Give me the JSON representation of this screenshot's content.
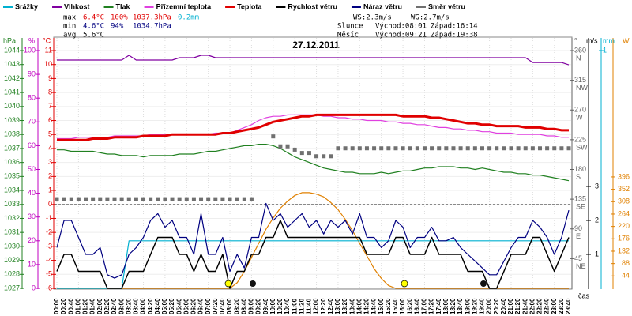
{
  "chart_data": {
    "type": "line",
    "title": "27.12.2011",
    "x_label": "čas",
    "categories": [
      "00:00",
      "00:20",
      "00:40",
      "01:00",
      "01:20",
      "01:40",
      "02:00",
      "02:20",
      "02:40",
      "03:00",
      "03:20",
      "03:40",
      "04:00",
      "04:20",
      "04:40",
      "05:00",
      "05:20",
      "05:40",
      "06:00",
      "06:20",
      "06:40",
      "07:00",
      "07:20",
      "07:40",
      "08:00",
      "08:20",
      "08:40",
      "09:00",
      "09:20",
      "09:40",
      "10:00",
      "10:20",
      "10:40",
      "11:00",
      "11:20",
      "11:40",
      "12:00",
      "12:20",
      "12:40",
      "13:00",
      "13:20",
      "13:40",
      "14:00",
      "14:20",
      "14:40",
      "15:00",
      "15:20",
      "15:40",
      "16:00",
      "16:20",
      "16:40",
      "17:00",
      "17:20",
      "17:40",
      "18:00",
      "18:20",
      "18:40",
      "19:00",
      "19:20",
      "19:40",
      "20:00",
      "20:20",
      "20:40",
      "21:00",
      "21:20",
      "21:40",
      "22:00",
      "22:20",
      "22:40",
      "23:00",
      "23:20",
      "23:40"
    ],
    "axes": {
      "hpa": {
        "label": "hPa",
        "color": "#208020",
        "lim": [
          1027,
          1044
        ],
        "ticks": [
          1027,
          1028,
          1029,
          1030,
          1031,
          1032,
          1033,
          1034,
          1035,
          1036,
          1037,
          1038,
          1039,
          1040,
          1041,
          1042,
          1043,
          1044
        ]
      },
      "pct": {
        "label": "%",
        "color": "#c000c0",
        "lim": [
          0,
          100
        ],
        "ticks": [
          0,
          10,
          20,
          30,
          40,
          50,
          60,
          70,
          80,
          90,
          100
        ]
      },
      "c": {
        "label": "°C",
        "color": "#e00000",
        "lim": [
          -6,
          11
        ],
        "ticks": [
          -6,
          -5,
          -4,
          -3,
          -2,
          -1,
          0,
          1,
          2,
          3,
          4,
          5,
          6,
          7,
          8,
          9,
          10,
          11
        ]
      },
      "dir": {
        "label": "°",
        "color": "#606060",
        "lim": [
          0,
          360
        ],
        "ticks": [
          360,
          315,
          270,
          225,
          180,
          135,
          90,
          45
        ],
        "tick_names": [
          "N",
          "NW",
          "W",
          "SW",
          "S",
          "SE",
          "E",
          "NE"
        ]
      },
      "ms": {
        "label": "m/s",
        "color": "#000000",
        "lim": [
          0,
          7
        ],
        "ticks": [
          1,
          2,
          3
        ]
      },
      "mm": {
        "label": "mm",
        "color": "#00b0d0",
        "lim": [
          0,
          1
        ],
        "ticks": [
          1
        ]
      },
      "w": {
        "label": "W",
        "color": "#e08000",
        "lim": [
          0,
          845
        ],
        "ticks": [
          44,
          88,
          132,
          176,
          220,
          264,
          308,
          352,
          396
        ]
      }
    },
    "series": [
      {
        "color": "#e08000",
        "axis": "w",
        "values": [
          0,
          0,
          0,
          0,
          0,
          0,
          0,
          0,
          0,
          0,
          0,
          0,
          0,
          0,
          0,
          0,
          0,
          0,
          0,
          0,
          0,
          0,
          0,
          0,
          0,
          20,
          60,
          110,
          160,
          210,
          250,
          285,
          310,
          330,
          340,
          340,
          335,
          325,
          305,
          280,
          245,
          205,
          160,
          115,
          70,
          35,
          10,
          0,
          0,
          0,
          0,
          0,
          0,
          0,
          0,
          0,
          0,
          0,
          0,
          0,
          0,
          0,
          0,
          0,
          0,
          0,
          0,
          0,
          0,
          0,
          0,
          0
        ]
      },
      {
        "name": "Srážky",
        "color": "#00b0d0",
        "axis": "mm",
        "values": [
          0,
          0,
          0,
          0,
          0,
          0,
          0,
          0,
          0,
          0,
          0.2,
          0.2,
          0.2,
          0.2,
          0.2,
          0.2,
          0.2,
          0.2,
          0.2,
          0.2,
          0.2,
          0.2,
          0.2,
          0.2,
          0.2,
          0.2,
          0.2,
          0.2,
          0.2,
          0.2,
          0.2,
          0.2,
          0.2,
          0.2,
          0.2,
          0.2,
          0.2,
          0.2,
          0.2,
          0.2,
          0.2,
          0.2,
          0.2,
          0.2,
          0.2,
          0.2,
          0.2,
          0.2,
          0.2,
          0.2,
          0.2,
          0.2,
          0.2,
          0.2,
          0.2,
          0.2,
          0.2,
          0.2,
          0.2,
          0.2,
          0.2,
          0.2,
          0.2,
          0.2,
          0.2,
          0.2,
          0.2,
          0.2,
          0.2,
          0.2,
          0.2,
          0.2
        ]
      },
      {
        "name": "Vlhkost",
        "color": "#8000a0",
        "axis": "pct",
        "values": [
          96,
          96,
          96,
          96,
          96,
          96,
          96,
          96,
          96,
          96,
          98,
          96,
          96,
          96,
          96,
          96,
          96,
          97,
          97,
          97,
          98,
          98,
          97,
          97,
          97,
          97,
          97,
          97,
          97,
          97,
          97,
          97,
          97,
          97,
          97,
          97,
          97,
          97,
          97,
          97,
          97,
          97,
          97,
          97,
          97,
          97,
          97,
          97,
          97,
          97,
          97,
          97,
          97,
          97,
          97,
          97,
          97,
          97,
          97,
          97,
          97,
          97,
          97,
          97,
          97,
          97,
          95,
          95,
          95,
          95,
          95,
          94
        ]
      },
      {
        "name": "Tlak",
        "color": "#208020",
        "axis": "hpa",
        "values": [
          1036.9,
          1036.9,
          1036.8,
          1036.8,
          1036.8,
          1036.8,
          1036.7,
          1036.6,
          1036.6,
          1036.5,
          1036.5,
          1036.5,
          1036.4,
          1036.5,
          1036.5,
          1036.5,
          1036.5,
          1036.6,
          1036.6,
          1036.6,
          1036.7,
          1036.8,
          1036.8,
          1036.9,
          1037.0,
          1037.1,
          1037.2,
          1037.2,
          1037.3,
          1037.3,
          1037.2,
          1037.0,
          1036.7,
          1036.4,
          1036.2,
          1036.0,
          1035.8,
          1035.6,
          1035.5,
          1035.4,
          1035.3,
          1035.3,
          1035.2,
          1035.2,
          1035.2,
          1035.3,
          1035.2,
          1035.3,
          1035.4,
          1035.4,
          1035.5,
          1035.6,
          1035.6,
          1035.7,
          1035.7,
          1035.7,
          1035.6,
          1035.6,
          1035.5,
          1035.6,
          1035.5,
          1035.4,
          1035.3,
          1035.3,
          1035.2,
          1035.2,
          1035.1,
          1035.1,
          1035.0,
          1034.9,
          1034.8,
          1034.7
        ]
      },
      {
        "name": "Přízemní teplota",
        "color": "#e040e0",
        "axis": "c",
        "values": [
          4.7,
          4.7,
          4.7,
          4.8,
          4.8,
          4.8,
          4.8,
          4.8,
          4.9,
          4.9,
          4.9,
          4.9,
          4.9,
          5.0,
          5.0,
          5.0,
          5.0,
          5.0,
          5.0,
          5.0,
          5.0,
          5.0,
          5.1,
          5.1,
          5.1,
          5.3,
          5.5,
          5.7,
          6.0,
          6.2,
          6.3,
          6.3,
          6.4,
          6.4,
          6.4,
          6.4,
          6.4,
          6.3,
          6.3,
          6.2,
          6.2,
          6.1,
          6.1,
          6.0,
          6.0,
          6.0,
          5.9,
          5.9,
          5.8,
          5.8,
          5.7,
          5.7,
          5.6,
          5.5,
          5.5,
          5.4,
          5.4,
          5.3,
          5.3,
          5.2,
          5.2,
          5.1,
          5.1,
          5.1,
          5.0,
          5.0,
          5.0,
          5.0,
          4.9,
          4.9,
          4.8,
          4.8
        ]
      },
      {
        "name": "Teplota",
        "color": "#e00000",
        "axis": "c",
        "width": 3,
        "values": [
          4.6,
          4.6,
          4.6,
          4.6,
          4.6,
          4.7,
          4.7,
          4.7,
          4.8,
          4.8,
          4.8,
          4.8,
          4.9,
          4.9,
          4.9,
          4.9,
          5.0,
          5.0,
          5.0,
          5.0,
          5.0,
          5.0,
          5.0,
          5.1,
          5.1,
          5.2,
          5.3,
          5.4,
          5.5,
          5.7,
          5.9,
          6.0,
          6.1,
          6.2,
          6.3,
          6.3,
          6.4,
          6.4,
          6.4,
          6.4,
          6.4,
          6.4,
          6.4,
          6.4,
          6.4,
          6.4,
          6.4,
          6.4,
          6.3,
          6.3,
          6.3,
          6.3,
          6.2,
          6.2,
          6.1,
          6.0,
          5.9,
          5.8,
          5.8,
          5.7,
          5.7,
          5.6,
          5.6,
          5.6,
          5.6,
          5.5,
          5.5,
          5.5,
          5.4,
          5.4,
          5.3,
          5.3
        ]
      },
      {
        "name": "Rychlost větru",
        "color": "#000000",
        "axis": "ms",
        "width": 1.5,
        "values": [
          0.5,
          1,
          1,
          0.5,
          0.5,
          0.5,
          0.5,
          0,
          0,
          0,
          0.5,
          0.5,
          0.5,
          1,
          1.5,
          1.5,
          1.5,
          1,
          1,
          0.5,
          1,
          0.5,
          0.5,
          1,
          0,
          0.5,
          0.5,
          1,
          1,
          1.5,
          1.5,
          2,
          1.5,
          1.5,
          1.5,
          1.5,
          1.5,
          1.5,
          1.5,
          1.5,
          1.5,
          1.5,
          1.5,
          1,
          1,
          1,
          1,
          1.5,
          1.5,
          1,
          1,
          1,
          1.5,
          1,
          1,
          1,
          1,
          0.5,
          0.5,
          0.5,
          0,
          0,
          0.5,
          1,
          1,
          1,
          1.5,
          1.5,
          1,
          0.5,
          1,
          1.5
        ]
      },
      {
        "name": "Náraz větru",
        "color": "#000080",
        "axis": "ms",
        "values": [
          1.2,
          2,
          2,
          1.5,
          1,
          1,
          1.2,
          0.4,
          0.3,
          0.4,
          1,
          1.2,
          1.5,
          2,
          2.2,
          1.8,
          2,
          1.5,
          1.5,
          1,
          2.2,
          1,
          1,
          1.5,
          0.5,
          1,
          0.6,
          1.5,
          1.5,
          2.5,
          2,
          2.2,
          1.8,
          2,
          2.2,
          1.8,
          2,
          1.6,
          2,
          1.8,
          2,
          1.6,
          2.2,
          1.5,
          1.5,
          1.2,
          1.4,
          2,
          1.8,
          1.2,
          1.5,
          1.5,
          1.8,
          1.4,
          1.4,
          1.5,
          1.2,
          1,
          0.8,
          0.6,
          0.4,
          0.4,
          0.8,
          1.2,
          1.5,
          1.5,
          2,
          1.8,
          1.5,
          1,
          1.5,
          2.3
        ]
      },
      {
        "name": "Směr větru",
        "color": "#707070",
        "axis": "dir",
        "points": true,
        "values": [
          135,
          135,
          135,
          135,
          135,
          135,
          135,
          135,
          135,
          135,
          135,
          135,
          135,
          135,
          135,
          135,
          135,
          135,
          135,
          135,
          135,
          135,
          135,
          135,
          135,
          135,
          135,
          135,
          null,
          null,
          230,
          215,
          215,
          210,
          205,
          205,
          200,
          200,
          200,
          212,
          212,
          212,
          212,
          212,
          212,
          212,
          212,
          212,
          212,
          212,
          212,
          212,
          212,
          212,
          212,
          212,
          212,
          212,
          212,
          212,
          212,
          212,
          212,
          212,
          212,
          212,
          212,
          212,
          212,
          212,
          212,
          212
        ]
      }
    ],
    "stats": [
      {
        "label": "max",
        "temp": "6.4°C",
        "hum": "100%",
        "press": "1037.3hPa",
        "rain": "0.2mm"
      },
      {
        "label": "min",
        "temp": "4.6°C",
        "hum": "94%",
        "press": "1034.7hPa"
      },
      {
        "label": "avg",
        "temp": "5.6°C"
      }
    ],
    "wind": {
      "ws": "WS:2.3m/s",
      "wg": "WG:2.7m/s"
    },
    "sun": {
      "label": "Slunce",
      "rise": "Východ:08:01",
      "set": "Západ:16:14"
    },
    "moon": {
      "label": "Měsíc",
      "rise": "Východ:09:21",
      "set": "Západ:19:38"
    }
  }
}
